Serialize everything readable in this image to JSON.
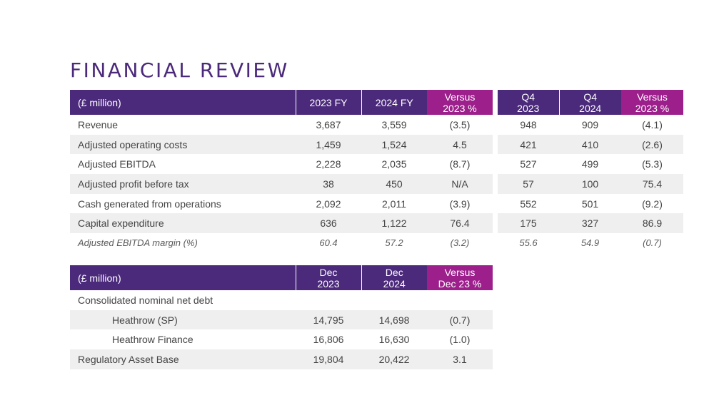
{
  "title": "FINANCIAL REVIEW",
  "colors": {
    "header": "#4b2a7b",
    "versus": "#9c1f8c",
    "row_shade": "#efefef"
  },
  "fy_table": {
    "headers": [
      "(£ million)",
      "2023 FY",
      "2024 FY",
      "Versus\n2023 %"
    ],
    "rows": [
      {
        "label": "Revenue",
        "fy2023": "3,687",
        "fy2024": "3,559",
        "vs": "(3.5)"
      },
      {
        "label": "Adjusted operating costs",
        "fy2023": "1,459",
        "fy2024": "1,524",
        "vs": "4.5"
      },
      {
        "label": "Adjusted EBITDA",
        "fy2023": "2,228",
        "fy2024": "2,035",
        "vs": "(8.7)"
      },
      {
        "label": "Adjusted profit before tax",
        "fy2023": "38",
        "fy2024": "450",
        "vs": "N/A"
      },
      {
        "label": "Cash generated from operations",
        "fy2023": "2,092",
        "fy2024": "2,011",
        "vs": "(3.9)"
      },
      {
        "label": "Capital expenditure",
        "fy2023": "636",
        "fy2024": "1,122",
        "vs": "76.4"
      },
      {
        "label": "Adjusted EBITDA margin (%)",
        "fy2023": "60.4",
        "fy2024": "57.2",
        "vs": "(3.2)"
      }
    ]
  },
  "q4_table": {
    "headers": [
      "Q4\n2023",
      "Q4\n2024",
      "Versus\n2023 %"
    ],
    "rows": [
      {
        "q2023": "948",
        "q2024": "909",
        "vs": "(4.1)"
      },
      {
        "q2023": "421",
        "q2024": "410",
        "vs": "(2.6)"
      },
      {
        "q2023": "527",
        "q2024": "499",
        "vs": "(5.3)"
      },
      {
        "q2023": "57",
        "q2024": "100",
        "vs": "75.4"
      },
      {
        "q2023": "552",
        "q2024": "501",
        "vs": "(9.2)"
      },
      {
        "q2023": "175",
        "q2024": "327",
        "vs": "86.9"
      },
      {
        "q2023": "55.6",
        "q2024": "54.9",
        "vs": "(0.7)"
      }
    ]
  },
  "debt_table": {
    "headers": [
      "(£ million)",
      "Dec\n2023",
      "Dec\n2024",
      "Versus\nDec 23 %"
    ],
    "rows": [
      {
        "label": "Consolidated nominal net debt",
        "dec2023": "",
        "dec2024": "",
        "vs": ""
      },
      {
        "label": "Heathrow (SP)",
        "dec2023": "14,795",
        "dec2024": "14,698",
        "vs": "(0.7)"
      },
      {
        "label": "Heathrow Finance",
        "dec2023": "16,806",
        "dec2024": "16,630",
        "vs": "(1.0)"
      },
      {
        "label": "Regulatory Asset Base",
        "dec2023": "19,804",
        "dec2024": "20,422",
        "vs": "3.1"
      }
    ]
  }
}
